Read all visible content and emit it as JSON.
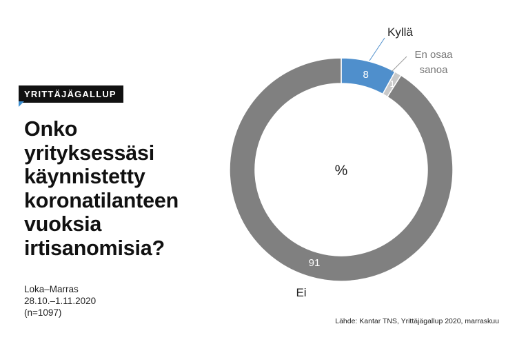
{
  "badge": "YRITTÄJÄGALLUP",
  "question_lines": [
    "Onko",
    "yrityksessäsi",
    "käynnistetty",
    "koronatilanteen",
    "vuoksia",
    "irtisanomisia?"
  ],
  "meta": {
    "period": "Loka–Marras",
    "dates": "28.10.–1.11.2020",
    "sample": "(n=1097)"
  },
  "source": "Lähde: Kantar TNS, Yrittäjägallup 2020, marraskuu",
  "colors": {
    "kylla": "#4f8fcc",
    "en_osaa": "#c9c9c9",
    "ei": "#808080",
    "badge_bg": "#111111",
    "badge_accent": "#3d8fd1"
  },
  "chart_data": {
    "type": "pie",
    "donut": true,
    "center_label": "%",
    "slices": [
      {
        "label": "Kyllä",
        "value": 8
      },
      {
        "label": "En osaa sanoa",
        "label_lines": [
          "En osaa",
          "sanoa"
        ],
        "value": 1
      },
      {
        "label": "Ei",
        "value": 91
      }
    ]
  }
}
